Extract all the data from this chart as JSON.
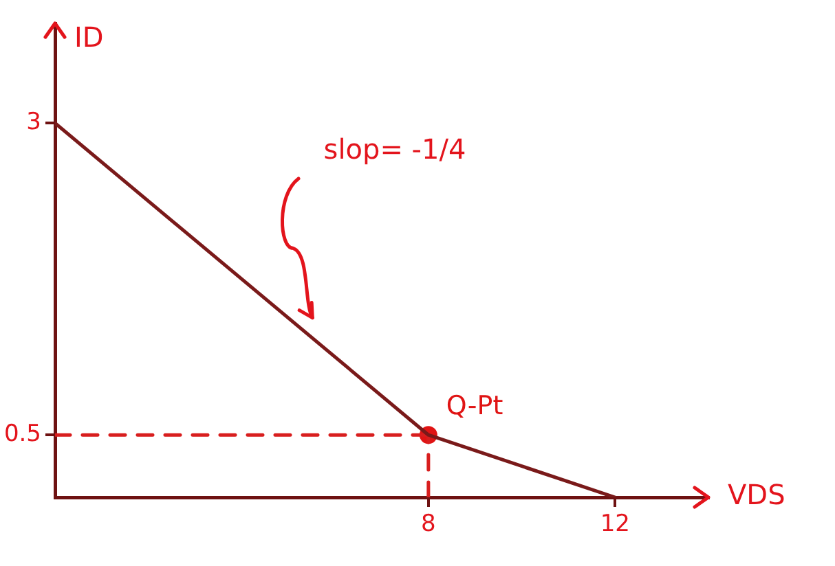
{
  "chart_data": {
    "type": "line",
    "xlabel": "VDS",
    "ylabel": "ID",
    "annotations": [
      "slop= -1/4"
    ],
    "xlim": [
      0,
      14
    ],
    "ylim": [
      0,
      3.8
    ],
    "xticks": [
      8,
      12
    ],
    "yticks": [
      0.5,
      3
    ],
    "grid": false,
    "legend": false,
    "series": [
      {
        "type": "line",
        "color": "#7a1a1a",
        "x": [
          0,
          8,
          12
        ],
        "values": [
          3,
          0.5,
          0
        ],
        "line_style": "solid",
        "marker": "none"
      },
      {
        "type": "line",
        "color": "#d81e1e",
        "x": [
          0,
          8
        ],
        "values": [
          0.5,
          0.5
        ],
        "line_style": "dashed",
        "marker": "none"
      },
      {
        "type": "line",
        "color": "#d81e1e",
        "x": [
          8,
          8
        ],
        "values": [
          0,
          0.5
        ],
        "line_style": "dashed",
        "marker": "none"
      },
      {
        "type": "scatter",
        "name": "Q-Pt",
        "color": "#e01414",
        "x": [
          8
        ],
        "values": [
          0.5
        ],
        "marker": "circle"
      }
    ]
  }
}
